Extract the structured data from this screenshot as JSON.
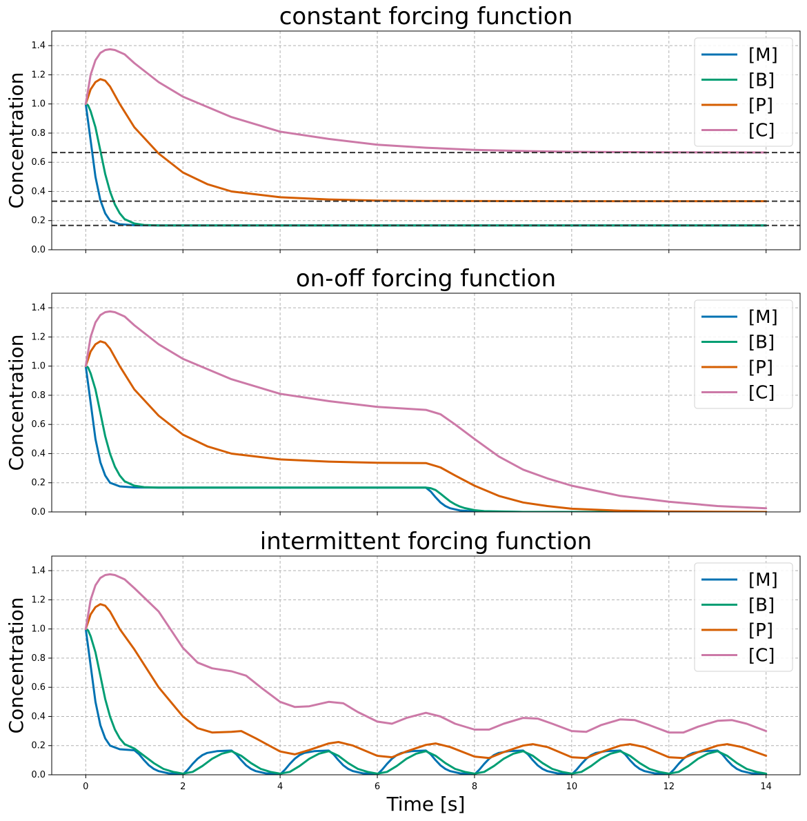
{
  "chart_data": [
    {
      "type": "line",
      "title": "constant forcing function",
      "xlabel": "",
      "ylabel": "Concentration",
      "xlim": [
        -0.7,
        14.7
      ],
      "ylim": [
        0,
        1.5
      ],
      "xticks": [
        0,
        2,
        4,
        6,
        8,
        10,
        12,
        14
      ],
      "yticks": [
        0.0,
        0.2,
        0.4,
        0.6,
        0.8,
        1.0,
        1.2,
        1.4
      ],
      "show_x_tick_labels": false,
      "grid": true,
      "legend": "top-right",
      "reference_lines": [
        0.6667,
        0.3333,
        0.1667
      ],
      "series": [
        {
          "name": "[M]",
          "color": "#0072b2",
          "x": [
            0,
            0.1,
            0.2,
            0.3,
            0.4,
            0.5,
            0.7,
            1,
            1.5,
            2,
            4,
            6,
            8,
            10,
            12,
            14
          ],
          "y": [
            1.0,
            0.75,
            0.5,
            0.34,
            0.25,
            0.2,
            0.175,
            0.168,
            0.1667,
            0.1667,
            0.1667,
            0.1667,
            0.1667,
            0.1667,
            0.1667,
            0.1667
          ]
        },
        {
          "name": "[B]",
          "color": "#009e73",
          "x": [
            0,
            0.05,
            0.1,
            0.2,
            0.3,
            0.4,
            0.5,
            0.6,
            0.7,
            0.8,
            1,
            1.2,
            1.5,
            2,
            4,
            6,
            8,
            10,
            12,
            14
          ],
          "y": [
            1.0,
            0.99,
            0.95,
            0.84,
            0.68,
            0.52,
            0.4,
            0.31,
            0.25,
            0.21,
            0.18,
            0.17,
            0.167,
            0.1667,
            0.1667,
            0.1667,
            0.1667,
            0.1667,
            0.1667,
            0.1667
          ]
        },
        {
          "name": "[P]",
          "color": "#d55e00",
          "x": [
            0,
            0.1,
            0.2,
            0.3,
            0.4,
            0.5,
            0.7,
            1,
            1.5,
            2,
            2.5,
            3,
            4,
            5,
            6,
            7,
            8,
            10,
            12,
            14
          ],
          "y": [
            1.0,
            1.1,
            1.15,
            1.17,
            1.16,
            1.12,
            1.0,
            0.84,
            0.66,
            0.53,
            0.45,
            0.4,
            0.36,
            0.345,
            0.337,
            0.335,
            0.334,
            0.3333,
            0.3333,
            0.3333
          ]
        },
        {
          "name": "[C]",
          "color": "#cc79a7",
          "x": [
            0,
            0.1,
            0.2,
            0.3,
            0.4,
            0.5,
            0.6,
            0.8,
            1,
            1.5,
            2,
            3,
            4,
            5,
            6,
            7,
            8,
            9,
            10,
            12,
            14
          ],
          "y": [
            1.0,
            1.2,
            1.3,
            1.35,
            1.37,
            1.375,
            1.37,
            1.34,
            1.28,
            1.15,
            1.05,
            0.91,
            0.81,
            0.76,
            0.72,
            0.7,
            0.685,
            0.677,
            0.672,
            0.668,
            0.667
          ]
        }
      ]
    },
    {
      "type": "line",
      "title": "on-off forcing function",
      "xlabel": "",
      "ylabel": "Concentration",
      "xlim": [
        -0.7,
        14.7
      ],
      "ylim": [
        0,
        1.5
      ],
      "xticks": [
        0,
        2,
        4,
        6,
        8,
        10,
        12,
        14
      ],
      "yticks": [
        0.0,
        0.2,
        0.4,
        0.6,
        0.8,
        1.0,
        1.2,
        1.4
      ],
      "show_x_tick_labels": false,
      "grid": true,
      "legend": "top-right",
      "reference_lines": [],
      "series": [
        {
          "name": "[M]",
          "color": "#0072b2",
          "x": [
            0,
            0.1,
            0.2,
            0.3,
            0.4,
            0.5,
            0.7,
            1,
            1.5,
            2,
            4,
            6,
            7,
            7.1,
            7.2,
            7.3,
            7.4,
            7.5,
            7.7,
            8,
            9,
            14
          ],
          "y": [
            1.0,
            0.75,
            0.5,
            0.34,
            0.25,
            0.2,
            0.175,
            0.168,
            0.1667,
            0.1667,
            0.1667,
            0.1667,
            0.1667,
            0.14,
            0.1,
            0.065,
            0.04,
            0.025,
            0.01,
            0.003,
            0.0,
            0.0
          ]
        },
        {
          "name": "[B]",
          "color": "#009e73",
          "x": [
            0,
            0.05,
            0.1,
            0.2,
            0.3,
            0.4,
            0.5,
            0.6,
            0.7,
            0.8,
            1,
            1.2,
            1.5,
            2,
            4,
            6,
            7,
            7.1,
            7.2,
            7.3,
            7.4,
            7.5,
            7.6,
            7.7,
            7.8,
            8,
            8.2,
            9,
            14
          ],
          "y": [
            1.0,
            0.99,
            0.95,
            0.84,
            0.68,
            0.52,
            0.4,
            0.31,
            0.25,
            0.21,
            0.18,
            0.17,
            0.167,
            0.1667,
            0.1667,
            0.1667,
            0.1667,
            0.163,
            0.15,
            0.125,
            0.098,
            0.072,
            0.052,
            0.037,
            0.026,
            0.012,
            0.005,
            0.0,
            0.0
          ]
        },
        {
          "name": "[P]",
          "color": "#d55e00",
          "x": [
            0,
            0.1,
            0.2,
            0.3,
            0.4,
            0.5,
            0.7,
            1,
            1.5,
            2,
            2.5,
            3,
            4,
            5,
            6,
            7,
            7.3,
            7.6,
            8,
            8.5,
            9,
            9.5,
            10,
            11,
            12,
            13,
            14
          ],
          "y": [
            1.0,
            1.1,
            1.15,
            1.17,
            1.16,
            1.12,
            1.0,
            0.84,
            0.66,
            0.53,
            0.45,
            0.4,
            0.36,
            0.345,
            0.337,
            0.335,
            0.305,
            0.25,
            0.18,
            0.11,
            0.065,
            0.04,
            0.022,
            0.008,
            0.003,
            0.001,
            0.0
          ]
        },
        {
          "name": "[C]",
          "color": "#cc79a7",
          "x": [
            0,
            0.1,
            0.2,
            0.3,
            0.4,
            0.5,
            0.6,
            0.8,
            1,
            1.5,
            2,
            3,
            4,
            5,
            6,
            7,
            7.3,
            7.6,
            8,
            8.5,
            9,
            9.5,
            10,
            11,
            12,
            13,
            14
          ],
          "y": [
            1.0,
            1.2,
            1.3,
            1.35,
            1.37,
            1.375,
            1.37,
            1.34,
            1.28,
            1.15,
            1.05,
            0.91,
            0.81,
            0.76,
            0.72,
            0.7,
            0.67,
            0.6,
            0.5,
            0.38,
            0.29,
            0.23,
            0.18,
            0.11,
            0.07,
            0.04,
            0.025
          ]
        }
      ]
    },
    {
      "type": "line",
      "title": "intermittent forcing function",
      "xlabel": "Time [s]",
      "ylabel": "Concentration",
      "xlim": [
        -0.7,
        14.7
      ],
      "ylim": [
        0,
        1.5
      ],
      "xticks": [
        0,
        2,
        4,
        6,
        8,
        10,
        12,
        14
      ],
      "yticks": [
        0.0,
        0.2,
        0.4,
        0.6,
        0.8,
        1.0,
        1.2,
        1.4
      ],
      "show_x_tick_labels": true,
      "grid": true,
      "legend": "top-right",
      "reference_lines": [],
      "series": [
        {
          "name": "[M]",
          "color": "#0072b2",
          "x": [
            0,
            0.1,
            0.2,
            0.3,
            0.4,
            0.5,
            0.7,
            1,
            1.1,
            1.2,
            1.3,
            1.4,
            1.5,
            1.7,
            2,
            2.1,
            2.2,
            2.3,
            2.4,
            2.5,
            2.7,
            3,
            3.1,
            3.2,
            3.3,
            3.4,
            3.5,
            3.7,
            4,
            4.1,
            4.2,
            4.3,
            4.4,
            4.5,
            4.7,
            5,
            5.1,
            5.2,
            5.3,
            5.4,
            5.5,
            5.7,
            6,
            6.1,
            6.2,
            6.3,
            6.4,
            6.5,
            6.7,
            7,
            7.1,
            7.2,
            7.3,
            7.4,
            7.5,
            7.7,
            8,
            8.1,
            8.2,
            8.3,
            8.4,
            8.5,
            8.7,
            9,
            9.1,
            9.2,
            9.3,
            9.4,
            9.5,
            9.7,
            10,
            10.1,
            10.2,
            10.3,
            10.4,
            10.5,
            10.7,
            11,
            11.1,
            11.2,
            11.3,
            11.4,
            11.5,
            11.7,
            12,
            12.1,
            12.2,
            12.3,
            12.4,
            12.5,
            12.7,
            13,
            13.1,
            13.2,
            13.3,
            13.4,
            13.5,
            13.7,
            14
          ],
          "y": [
            1.0,
            0.75,
            0.5,
            0.34,
            0.25,
            0.2,
            0.175,
            0.168,
            0.14,
            0.1,
            0.065,
            0.04,
            0.025,
            0.01,
            0.003,
            0.035,
            0.075,
            0.11,
            0.135,
            0.15,
            0.162,
            0.166,
            0.14,
            0.1,
            0.065,
            0.04,
            0.025,
            0.01,
            0.003,
            0.035,
            0.075,
            0.11,
            0.135,
            0.15,
            0.162,
            0.166,
            0.14,
            0.1,
            0.065,
            0.04,
            0.025,
            0.01,
            0.003,
            0.035,
            0.075,
            0.11,
            0.135,
            0.15,
            0.162,
            0.166,
            0.14,
            0.1,
            0.065,
            0.04,
            0.025,
            0.01,
            0.003,
            0.035,
            0.075,
            0.11,
            0.135,
            0.15,
            0.162,
            0.166,
            0.14,
            0.1,
            0.065,
            0.04,
            0.025,
            0.01,
            0.003,
            0.035,
            0.075,
            0.11,
            0.135,
            0.15,
            0.162,
            0.166,
            0.14,
            0.1,
            0.065,
            0.04,
            0.025,
            0.01,
            0.003,
            0.035,
            0.075,
            0.11,
            0.135,
            0.15,
            0.162,
            0.166,
            0.14,
            0.1,
            0.065,
            0.04,
            0.025,
            0.01,
            0.003
          ]
        },
        {
          "name": "[B]",
          "color": "#009e73",
          "x": [
            0,
            0.05,
            0.1,
            0.2,
            0.3,
            0.4,
            0.5,
            0.6,
            0.7,
            0.8,
            1,
            1.2,
            1.4,
            1.6,
            1.8,
            2,
            2.2,
            2.4,
            2.6,
            2.8,
            3,
            3.2,
            3.4,
            3.6,
            3.8,
            4,
            4.2,
            4.4,
            4.6,
            4.8,
            5,
            5.2,
            5.4,
            5.6,
            5.8,
            6,
            6.2,
            6.4,
            6.6,
            6.8,
            7,
            7.2,
            7.4,
            7.6,
            7.8,
            8,
            8.2,
            8.4,
            8.6,
            8.8,
            9,
            9.2,
            9.4,
            9.6,
            9.8,
            10,
            10.2,
            10.4,
            10.6,
            10.8,
            11,
            11.2,
            11.4,
            11.6,
            11.8,
            12,
            12.2,
            12.4,
            12.6,
            12.8,
            13,
            13.2,
            13.4,
            13.6,
            13.8,
            14
          ],
          "y": [
            1.0,
            0.99,
            0.95,
            0.84,
            0.68,
            0.52,
            0.4,
            0.31,
            0.25,
            0.21,
            0.18,
            0.13,
            0.08,
            0.04,
            0.02,
            0.008,
            0.02,
            0.06,
            0.11,
            0.145,
            0.162,
            0.13,
            0.08,
            0.04,
            0.02,
            0.008,
            0.02,
            0.06,
            0.11,
            0.145,
            0.162,
            0.13,
            0.08,
            0.04,
            0.02,
            0.008,
            0.02,
            0.06,
            0.11,
            0.145,
            0.162,
            0.13,
            0.08,
            0.04,
            0.02,
            0.008,
            0.02,
            0.06,
            0.11,
            0.145,
            0.162,
            0.13,
            0.08,
            0.04,
            0.02,
            0.008,
            0.02,
            0.06,
            0.11,
            0.145,
            0.162,
            0.13,
            0.08,
            0.04,
            0.02,
            0.008,
            0.02,
            0.06,
            0.11,
            0.145,
            0.162,
            0.13,
            0.08,
            0.04,
            0.02,
            0.008
          ]
        },
        {
          "name": "[P]",
          "color": "#d55e00",
          "x": [
            0,
            0.1,
            0.2,
            0.3,
            0.4,
            0.5,
            0.7,
            1,
            1.5,
            2,
            2.3,
            2.6,
            3,
            3.2,
            3.5,
            4,
            4.3,
            4.6,
            5,
            5.2,
            5.5,
            6,
            6.3,
            6.6,
            7,
            7.2,
            7.5,
            8,
            8.3,
            8.6,
            9,
            9.2,
            9.5,
            10,
            10.3,
            10.6,
            11,
            11.2,
            11.5,
            12,
            12.3,
            12.6,
            13,
            13.2,
            13.5,
            14
          ],
          "y": [
            1.0,
            1.1,
            1.15,
            1.17,
            1.16,
            1.12,
            1.0,
            0.86,
            0.6,
            0.4,
            0.32,
            0.29,
            0.295,
            0.3,
            0.25,
            0.16,
            0.14,
            0.17,
            0.215,
            0.225,
            0.2,
            0.13,
            0.12,
            0.16,
            0.205,
            0.215,
            0.19,
            0.125,
            0.115,
            0.155,
            0.2,
            0.21,
            0.19,
            0.12,
            0.115,
            0.155,
            0.2,
            0.21,
            0.19,
            0.12,
            0.115,
            0.155,
            0.2,
            0.21,
            0.19,
            0.13
          ]
        },
        {
          "name": "[C]",
          "color": "#cc79a7",
          "x": [
            0,
            0.1,
            0.2,
            0.3,
            0.4,
            0.5,
            0.6,
            0.8,
            1,
            1.5,
            2,
            2.3,
            2.6,
            3,
            3.3,
            3.6,
            4,
            4.3,
            4.6,
            5,
            5.3,
            5.6,
            6,
            6.3,
            6.6,
            7,
            7.3,
            7.6,
            8,
            8.3,
            8.6,
            9,
            9.3,
            9.6,
            10,
            10.3,
            10.6,
            11,
            11.3,
            11.6,
            12,
            12.3,
            12.6,
            13,
            13.3,
            13.6,
            14
          ],
          "y": [
            1.0,
            1.2,
            1.3,
            1.35,
            1.37,
            1.375,
            1.37,
            1.34,
            1.28,
            1.12,
            0.87,
            0.77,
            0.73,
            0.71,
            0.68,
            0.6,
            0.5,
            0.465,
            0.47,
            0.5,
            0.49,
            0.43,
            0.365,
            0.35,
            0.39,
            0.425,
            0.4,
            0.35,
            0.31,
            0.31,
            0.35,
            0.39,
            0.385,
            0.35,
            0.3,
            0.295,
            0.34,
            0.38,
            0.375,
            0.34,
            0.29,
            0.29,
            0.33,
            0.37,
            0.375,
            0.35,
            0.3
          ]
        }
      ]
    }
  ]
}
